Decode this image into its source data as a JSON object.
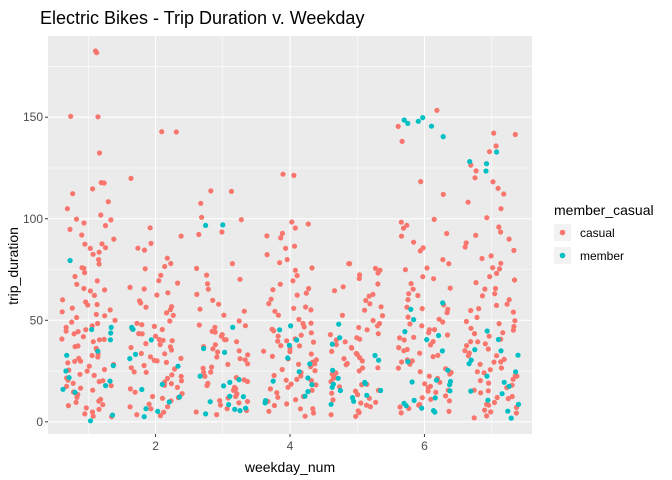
{
  "chart_data": {
    "type": "scatter",
    "title": "Electric Bikes - Trip Duration v. Weekday",
    "xlabel": "weekday_num",
    "ylabel": "trip_duration",
    "xlim": [
      0.4,
      7.6
    ],
    "ylim": [
      -6,
      190
    ],
    "x_ticks": [
      2,
      4,
      6
    ],
    "y_ticks": [
      0,
      50,
      100,
      150
    ],
    "x_tick_labels": [
      "2",
      "4",
      "6"
    ],
    "y_tick_labels": [
      "0",
      "50",
      "100",
      "150"
    ],
    "grid": true,
    "jitter": true,
    "legend": {
      "title": "member_casual",
      "position": "right"
    },
    "series": [
      {
        "name": "casual",
        "color": "#F8766D",
        "groups": [
          {
            "x": 1,
            "values": [
              182,
              182,
              150,
              150,
              132,
              118,
              118,
              115,
              112,
              108,
              105,
              102,
              100,
              99,
              98,
              97,
              95,
              92,
              90,
              88,
              87,
              86,
              85,
              84,
              83,
              80,
              78,
              76,
              75,
              74,
              72,
              70,
              68,
              66,
              65,
              64,
              62,
              60,
              59,
              58,
              57,
              56,
              55,
              54,
              53,
              52,
              51,
              50,
              49,
              48,
              47,
              46,
              45,
              45,
              44,
              43,
              42,
              41,
              40,
              40,
              39,
              38,
              37,
              36,
              35,
              35,
              34,
              33,
              32,
              31,
              30,
              30,
              29,
              28,
              27,
              26,
              25,
              25,
              24,
              23,
              22,
              21,
              20,
              20,
              19,
              18,
              17,
              16,
              15,
              15,
              14,
              13,
              12,
              11,
              10,
              10,
              9,
              8,
              7,
              6,
              5,
              4,
              3,
              2
            ]
          },
          {
            "x": 2,
            "values": [
              143,
              143,
              120,
              95,
              92,
              88,
              85,
              84,
              80,
              78,
              76,
              75,
              72,
              70,
              68,
              66,
              65,
              63,
              62,
              60,
              58,
              57,
              56,
              55,
              54,
              52,
              50,
              49,
              48,
              47,
              46,
              45,
              44,
              43,
              42,
              41,
              40,
              40,
              39,
              38,
              37,
              36,
              35,
              34,
              33,
              32,
              31,
              30,
              30,
              29,
              28,
              27,
              26,
              25,
              24,
              23,
              22,
              21,
              20,
              20,
              19,
              18,
              17,
              16,
              15,
              14,
              13,
              12,
              11,
              10,
              9,
              8,
              7,
              6,
              5,
              4,
              3
            ]
          },
          {
            "x": 3,
            "values": [
              114,
              114,
              108,
              101,
              100,
              93,
              92,
              78,
              76,
              72,
              70,
              68,
              65,
              63,
              60,
              58,
              56,
              55,
              52,
              50,
              48,
              47,
              46,
              45,
              44,
              43,
              42,
              41,
              40,
              39,
              38,
              37,
              36,
              35,
              34,
              33,
              32,
              31,
              30,
              29,
              28,
              27,
              26,
              25,
              24,
              23,
              22,
              21,
              20,
              19,
              18,
              17,
              16,
              15,
              14,
              13,
              12,
              11,
              10,
              9,
              8,
              7,
              6,
              5,
              4
            ]
          },
          {
            "x": 4,
            "values": [
              122,
              121,
              99,
              98,
              96,
              93,
              92,
              90,
              86,
              85,
              82,
              80,
              78,
              76,
              75,
              72,
              70,
              68,
              66,
              65,
              63,
              62,
              60,
              58,
              57,
              56,
              55,
              54,
              52,
              50,
              49,
              48,
              47,
              46,
              45,
              44,
              43,
              42,
              41,
              40,
              40,
              39,
              38,
              37,
              36,
              35,
              34,
              33,
              32,
              31,
              30,
              30,
              29,
              28,
              27,
              26,
              25,
              24,
              23,
              22,
              21,
              20,
              20,
              19,
              18,
              17,
              16,
              15,
              14,
              13,
              12,
              11,
              10,
              9,
              8,
              7,
              6,
              5,
              4,
              3
            ]
          },
          {
            "x": 5,
            "values": [
              78,
              78,
              76,
              75,
              73,
              72,
              70,
              68,
              67,
              65,
              63,
              62,
              60,
              58,
              57,
              55,
              53,
              52,
              50,
              48,
              47,
              46,
              45,
              44,
              43,
              42,
              41,
              40,
              39,
              38,
              37,
              36,
              35,
              34,
              33,
              32,
              31,
              30,
              29,
              28,
              27,
              26,
              25,
              24,
              23,
              22,
              21,
              20,
              19,
              18,
              17,
              16,
              15,
              14,
              13,
              12,
              11,
              10,
              9,
              8,
              7,
              6,
              5,
              4,
              3
            ]
          },
          {
            "x": 6,
            "values": [
              154,
              146,
              138,
              118,
              112,
              100,
              98,
              97,
              95,
              93,
              92,
              88,
              86,
              84,
              80,
              78,
              76,
              75,
              72,
              70,
              68,
              66,
              65,
              63,
              62,
              60,
              58,
              57,
              56,
              55,
              54,
              52,
              50,
              49,
              48,
              47,
              46,
              45,
              44,
              43,
              42,
              41,
              40,
              39,
              38,
              37,
              36,
              35,
              34,
              33,
              32,
              31,
              30,
              29,
              28,
              27,
              26,
              25,
              24,
              23,
              22,
              21,
              20,
              19,
              18,
              17,
              16,
              15,
              14,
              13,
              12,
              11,
              10,
              9,
              8,
              7,
              6,
              5,
              4
            ]
          },
          {
            "x": 7,
            "values": [
              142,
              142,
              136,
              133,
              127,
              123,
              120,
              118,
              115,
              112,
              108,
              105,
              100,
              96,
              94,
              92,
              90,
              88,
              86,
              84,
              82,
              80,
              78,
              76,
              75,
              73,
              72,
              70,
              68,
              66,
              65,
              63,
              62,
              60,
              58,
              57,
              56,
              55,
              54,
              52,
              50,
              49,
              48,
              47,
              46,
              45,
              44,
              43,
              42,
              41,
              40,
              39,
              38,
              37,
              36,
              35,
              34,
              33,
              32,
              31,
              30,
              29,
              28,
              27,
              26,
              25,
              24,
              23,
              22,
              21,
              20,
              19,
              18,
              17,
              16,
              15,
              14,
              13,
              12,
              11,
              10,
              9,
              8,
              7,
              6,
              5,
              4,
              3,
              2
            ]
          }
        ]
      },
      {
        "name": "member",
        "color": "#00BFC4",
        "groups": [
          {
            "x": 1,
            "values": [
              79,
              47,
              45,
              44,
              40,
              35,
              33,
              28,
              25,
              22,
              20,
              18,
              16,
              14,
              3,
              1
            ]
          },
          {
            "x": 2,
            "values": [
              47,
              46,
              40,
              33,
              31,
              27,
              19,
              16,
              12,
              10,
              7,
              5,
              2
            ]
          },
          {
            "x": 3,
            "values": [
              97,
              97,
              47,
              36,
              34,
              22,
              21,
              20,
              18,
              13,
              12,
              10,
              9,
              7,
              6,
              5,
              4
            ]
          },
          {
            "x": 4,
            "values": [
              47,
              45,
              40,
              38,
              32,
              28,
              25,
              22,
              20,
              18,
              15,
              13,
              11,
              9
            ]
          },
          {
            "x": 5,
            "values": [
              48,
              42,
              38,
              33,
              30,
              25,
              22,
              20,
              19,
              18,
              17,
              16,
              15,
              13,
              12,
              10,
              9
            ]
          },
          {
            "x": 6,
            "values": [
              150,
              149,
              148,
              147,
              146,
              141,
              58,
              55,
              50,
              45,
              42,
              40,
              35,
              30,
              25,
              21,
              20,
              19,
              18,
              15,
              12,
              10,
              9,
              8,
              7,
              6,
              5
            ]
          },
          {
            "x": 7,
            "values": [
              133,
              128,
              127,
              124,
              45,
              40,
              36,
              35,
              33,
              30,
              29,
              25,
              22,
              20,
              18,
              15,
              14,
              11,
              9,
              5,
              2
            ]
          }
        ]
      }
    ]
  }
}
